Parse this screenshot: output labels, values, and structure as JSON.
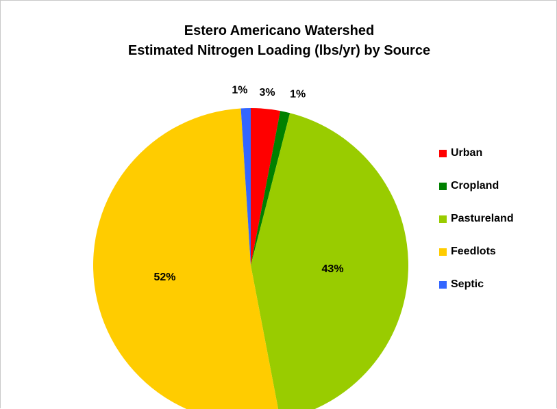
{
  "chart_data": {
    "type": "pie",
    "title_lines": [
      "Estero Americano Watershed",
      "Estimated Nitrogen Loading (lbs/yr) by Source"
    ],
    "categories": [
      "Urban",
      "Cropland",
      "Pastureland",
      "Feedlots",
      "Septic"
    ],
    "values": [
      3,
      1,
      43,
      52,
      1
    ],
    "labels": [
      "3%",
      "1%",
      "43%",
      "52%",
      "1%"
    ],
    "colors": [
      "#ff0000",
      "#008000",
      "#99cc00",
      "#ffcc00",
      "#3366ff"
    ],
    "start_angle_deg": 0,
    "direction": "clockwise",
    "legend_position": "right"
  }
}
